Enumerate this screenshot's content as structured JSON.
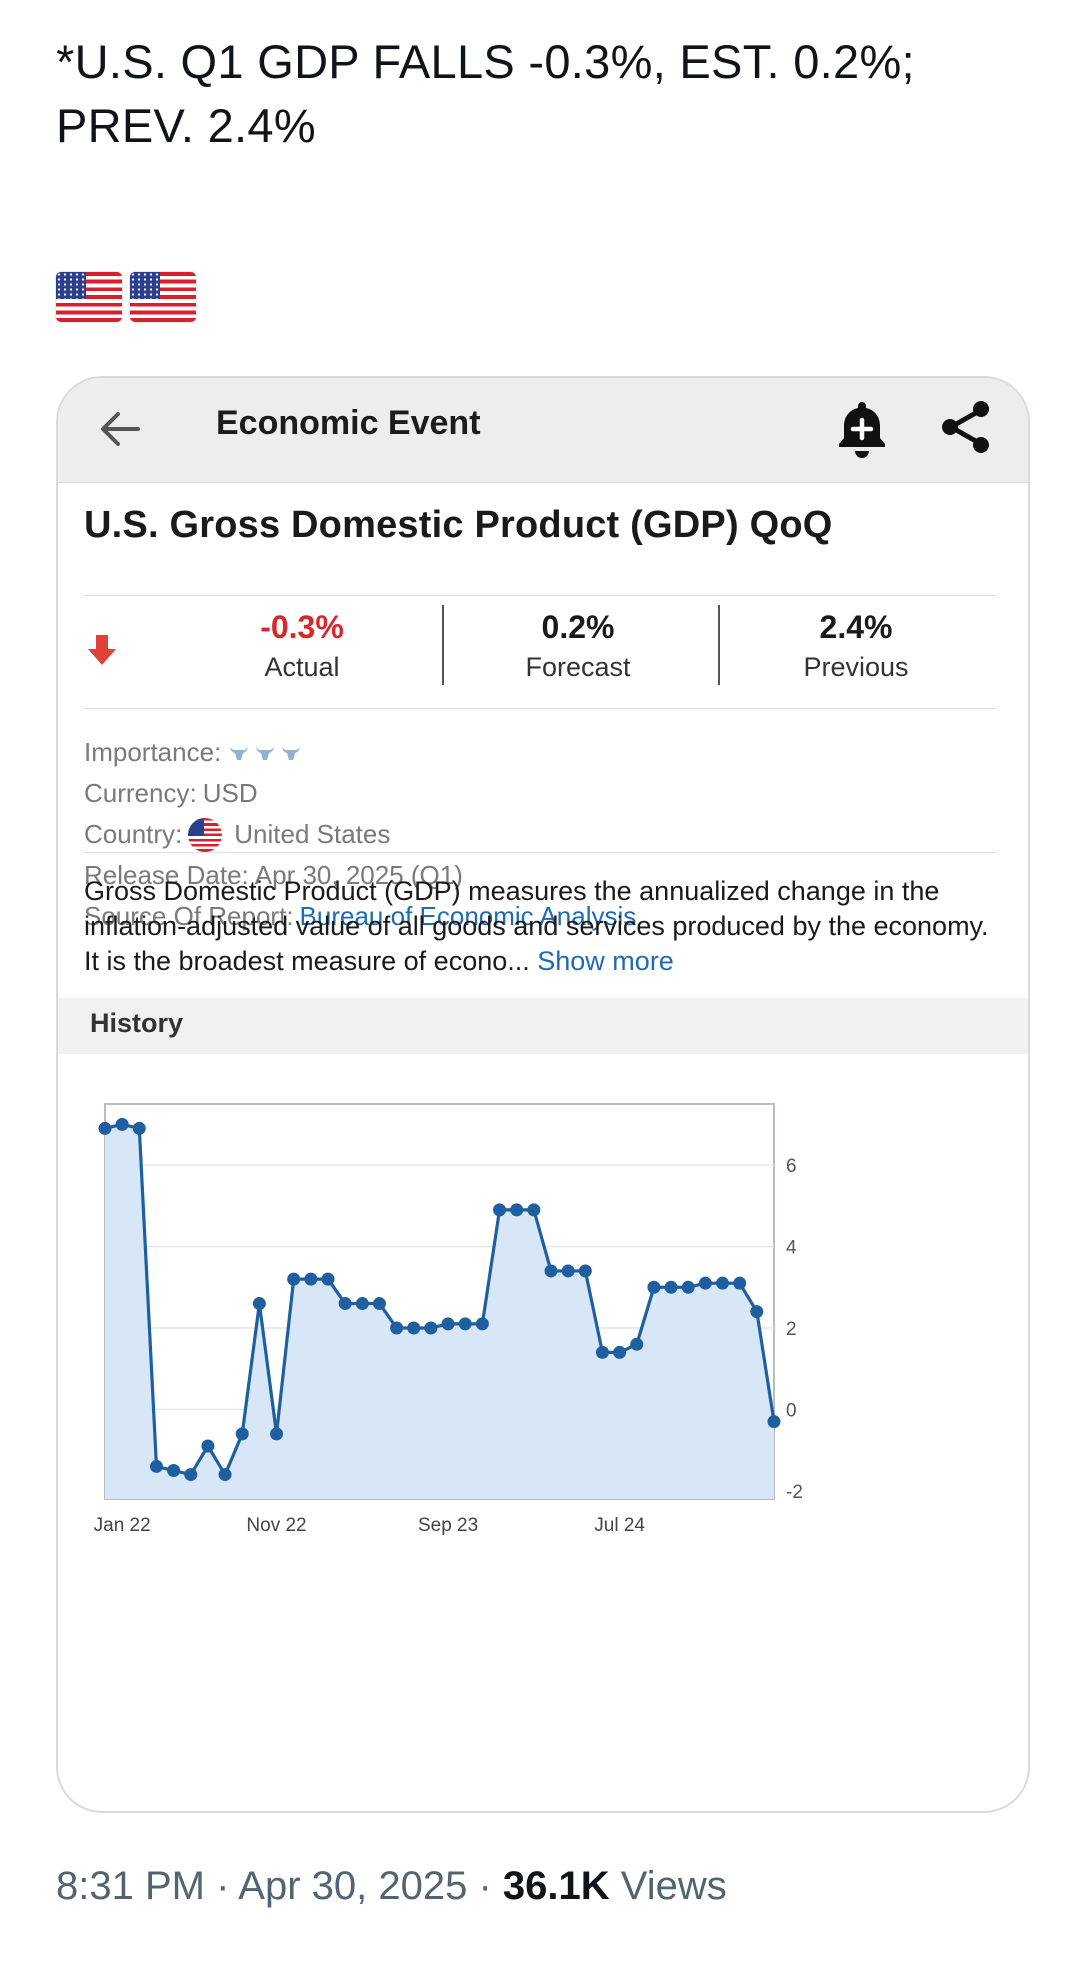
{
  "tweet": {
    "text": "*U.S. Q1 GDP FALLS -0.3%, EST. 0.2%; PREV. 2.4%",
    "timestamp": "8:31 PM · Apr 30, 2025 · ",
    "views_count": "36.1K",
    "views_label": " Views"
  },
  "appbar": {
    "title": "Economic Event"
  },
  "event": {
    "title": "U.S. Gross Domestic Product (GDP) QoQ",
    "actual_value": "-0.3%",
    "actual_label": "Actual",
    "forecast_value": "0.2%",
    "forecast_label": "Forecast",
    "previous_value": "2.4%",
    "previous_label": "Previous"
  },
  "meta": {
    "importance_label": "Importance:",
    "currency_label": "Currency:",
    "currency_value": "USD",
    "country_label": "Country:",
    "country_value": "United States",
    "release_label": "Release Date:",
    "release_value": "Apr 30, 2025 (Q1)",
    "source_label": "Source Of Report:",
    "source_value": "Bureau of Economic Analysis"
  },
  "description": {
    "text": "Gross Domestic Product (GDP) measures the annualized change in the inflation-adjusted value of all goods and services produced by the economy. It is the broadest measure of econo... ",
    "show_more": "Show more"
  },
  "history": {
    "label": "History"
  },
  "colors": {
    "negative": "#d9262a",
    "link": "#1f6bb3",
    "series": "#1f5fa0",
    "fill": "#d6e6f8"
  },
  "chart_data": {
    "type": "line",
    "title": "",
    "x_tick_labels": [
      "Jan 22",
      "Nov 22",
      "Sep 23",
      "Jul 24"
    ],
    "x_tick_indices": [
      1,
      10,
      20,
      30
    ],
    "y_ticks": [
      6,
      4,
      2,
      0,
      -2
    ],
    "ylim": [
      -2.2,
      7.5
    ],
    "y_axis_side": "right",
    "fill_below": true,
    "series": [
      {
        "name": "GDP QoQ",
        "values": [
          6.9,
          7.0,
          6.9,
          -1.4,
          -1.5,
          -1.6,
          -0.9,
          -1.6,
          -0.6,
          2.6,
          -0.6,
          3.2,
          3.2,
          3.2,
          2.6,
          2.6,
          2.6,
          2.0,
          2.0,
          2.0,
          2.1,
          2.1,
          2.1,
          4.9,
          4.9,
          4.9,
          3.4,
          3.4,
          3.4,
          1.4,
          1.4,
          1.6,
          3.0,
          3.0,
          3.0,
          3.1,
          3.1,
          3.1,
          2.4,
          -0.3
        ]
      }
    ]
  }
}
